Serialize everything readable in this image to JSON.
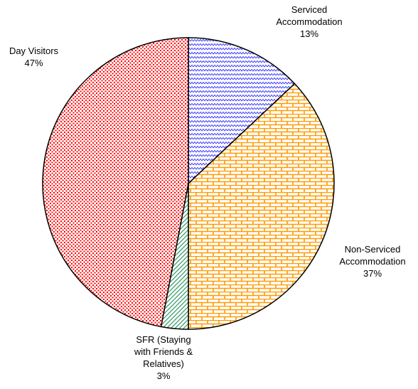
{
  "chart_data": {
    "type": "pie",
    "categories": [
      "Serviced Accommodation",
      "Non-Serviced Accommodation",
      "SFR (Staying with Friends & Relatives)",
      "Day Visitors"
    ],
    "values": [
      13,
      37,
      3,
      47
    ],
    "value_labels": [
      "13%",
      "37%",
      "3%",
      "47%"
    ],
    "colors": [
      "#3333ff",
      "#ff9900",
      "#339966",
      "#ff0000"
    ],
    "patterns": [
      "wave",
      "brick",
      "diagonal",
      "dots"
    ]
  }
}
